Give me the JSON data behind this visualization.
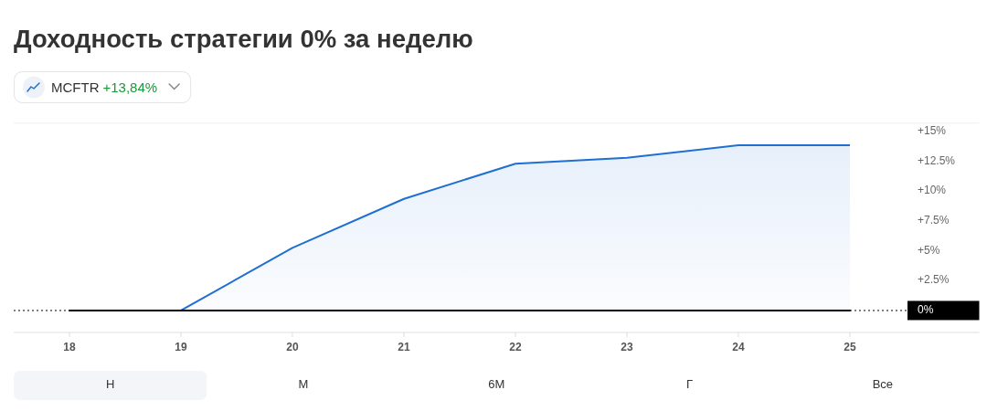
{
  "chart_data": {
    "type": "line",
    "title": "Доходность стратегии 0% за неделю",
    "annotations": [
      "+13,84%",
      "Н",
      "М",
      "6М",
      "Г",
      "Все"
    ],
    "x": [
      18,
      19,
      20,
      21,
      22,
      23,
      24,
      25
    ],
    "series": [
      {
        "color": "#000000",
        "values": [
          0,
          0,
          0,
          0,
          0,
          0,
          0,
          0
        ]
      },
      {
        "name": "MCFTR",
        "type": "area",
        "color": "#1f6fd3",
        "values": [
          0,
          0,
          5.25,
          9.35,
          12.3,
          12.8,
          13.84,
          13.84
        ]
      }
    ],
    "xlim": [
      17.5,
      26.16
    ],
    "xticks": [
      18,
      19,
      20,
      21,
      22,
      23,
      24,
      25
    ],
    "ylim": [
      -1.84,
      15.7
    ],
    "yticks": [
      {
        "value": 2.5,
        "label": "+2.5%"
      },
      {
        "value": 5,
        "label": "+5%"
      },
      {
        "value": 7.5,
        "label": "+7.5%"
      },
      {
        "value": 10,
        "label": "+10%"
      },
      {
        "value": 12.5,
        "label": "+12.5%"
      },
      {
        "value": 15,
        "label": "+15%"
      }
    ],
    "ref_lines": [
      {
        "axis": "y",
        "value": 0,
        "label": "0%",
        "color": "#000000",
        "line_style": "dotted"
      }
    ],
    "legend": "top left"
  }
}
